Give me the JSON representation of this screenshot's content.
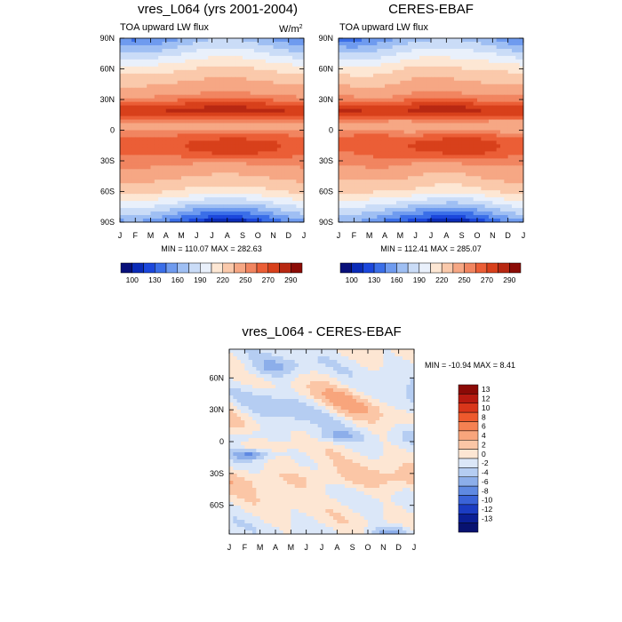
{
  "chart_data": [
    {
      "type": "heatmap",
      "title": "vres_L064 (yrs 2001-2004)",
      "left_label": "TOA upward LW flux",
      "units": "W/m",
      "units_superscript": "2",
      "x_ticks": [
        "J",
        "F",
        "M",
        "A",
        "M",
        "J",
        "J",
        "A",
        "S",
        "O",
        "N",
        "D",
        "J"
      ],
      "y_ticks": [
        "90N",
        "60N",
        "30N",
        "0",
        "30S",
        "60S",
        "90S"
      ],
      "y_values": [
        90,
        60,
        30,
        0,
        -30,
        -60,
        -90
      ],
      "minmax_text": "MIN = 110.07   MAX = 282.63",
      "min": 110.07,
      "max": 282.63,
      "colorbar_levels": [
        100,
        130,
        160,
        190,
        220,
        250,
        270,
        290
      ],
      "colorbar_label_text": [
        "100",
        "130",
        "160",
        "190",
        "220",
        "250",
        "270",
        "290"
      ]
    },
    {
      "type": "heatmap",
      "title": "CERES-EBAF",
      "left_label": "TOA upward LW flux",
      "x_ticks": [
        "J",
        "F",
        "M",
        "A",
        "M",
        "J",
        "J",
        "A",
        "S",
        "O",
        "N",
        "D",
        "J"
      ],
      "y_ticks": [
        "90N",
        "60N",
        "30N",
        "0",
        "30S",
        "60S",
        "90S"
      ],
      "y_values": [
        90,
        60,
        30,
        0,
        -30,
        -60,
        -90
      ],
      "minmax_text": "MIN = 112.41   MAX = 285.07",
      "min": 112.41,
      "max": 285.07,
      "colorbar_levels": [
        100,
        130,
        160,
        190,
        220,
        250,
        270,
        290
      ],
      "colorbar_label_text": [
        "100",
        "130",
        "160",
        "190",
        "220",
        "250",
        "270",
        "290"
      ]
    },
    {
      "type": "heatmap",
      "title": "vres_L064 - CERES-EBAF",
      "x_ticks": [
        "J",
        "F",
        "M",
        "A",
        "M",
        "J",
        "J",
        "A",
        "S",
        "O",
        "N",
        "D",
        "J"
      ],
      "y_ticks": [
        "60N",
        "30N",
        "0",
        "30S",
        "60S"
      ],
      "y_values": [
        60,
        30,
        0,
        -30,
        -60
      ],
      "minmax_text": "MIN = -10.94 MAX =   8.41",
      "min": -10.94,
      "max": 8.41,
      "colorbar_levels": [
        13,
        12,
        10,
        8,
        6,
        4,
        2,
        0,
        -2,
        -4,
        -6,
        -8,
        -10,
        -12,
        -13
      ],
      "colorbar_label_text": [
        "13",
        "12",
        "10",
        "8",
        "6",
        "4",
        "2",
        "0",
        "-2",
        "-4",
        "-6",
        "-8",
        "-10",
        "-12",
        "-13"
      ]
    }
  ],
  "colors": {
    "abs_palette": [
      "#08107a",
      "#0a2bb8",
      "#1b47dc",
      "#3a6ee8",
      "#6f9bef",
      "#9fbff3",
      "#cadcf7",
      "#e9f0fb",
      "#fde7d4",
      "#fac9ab",
      "#f6a784",
      "#f18560",
      "#eb5e36",
      "#d8401b",
      "#b82812",
      "#8c0c06"
    ],
    "diff_palette": [
      "#8b0a06",
      "#b71a10",
      "#d9361a",
      "#ee5a2d",
      "#f58152",
      "#f8a57c",
      "#fbc6a6",
      "#fde6d3",
      "#dbe7f8",
      "#b5cdf2",
      "#8caeea",
      "#5f89e2",
      "#3a63d8",
      "#1b3cc2",
      "#0b1f95",
      "#081270"
    ]
  }
}
